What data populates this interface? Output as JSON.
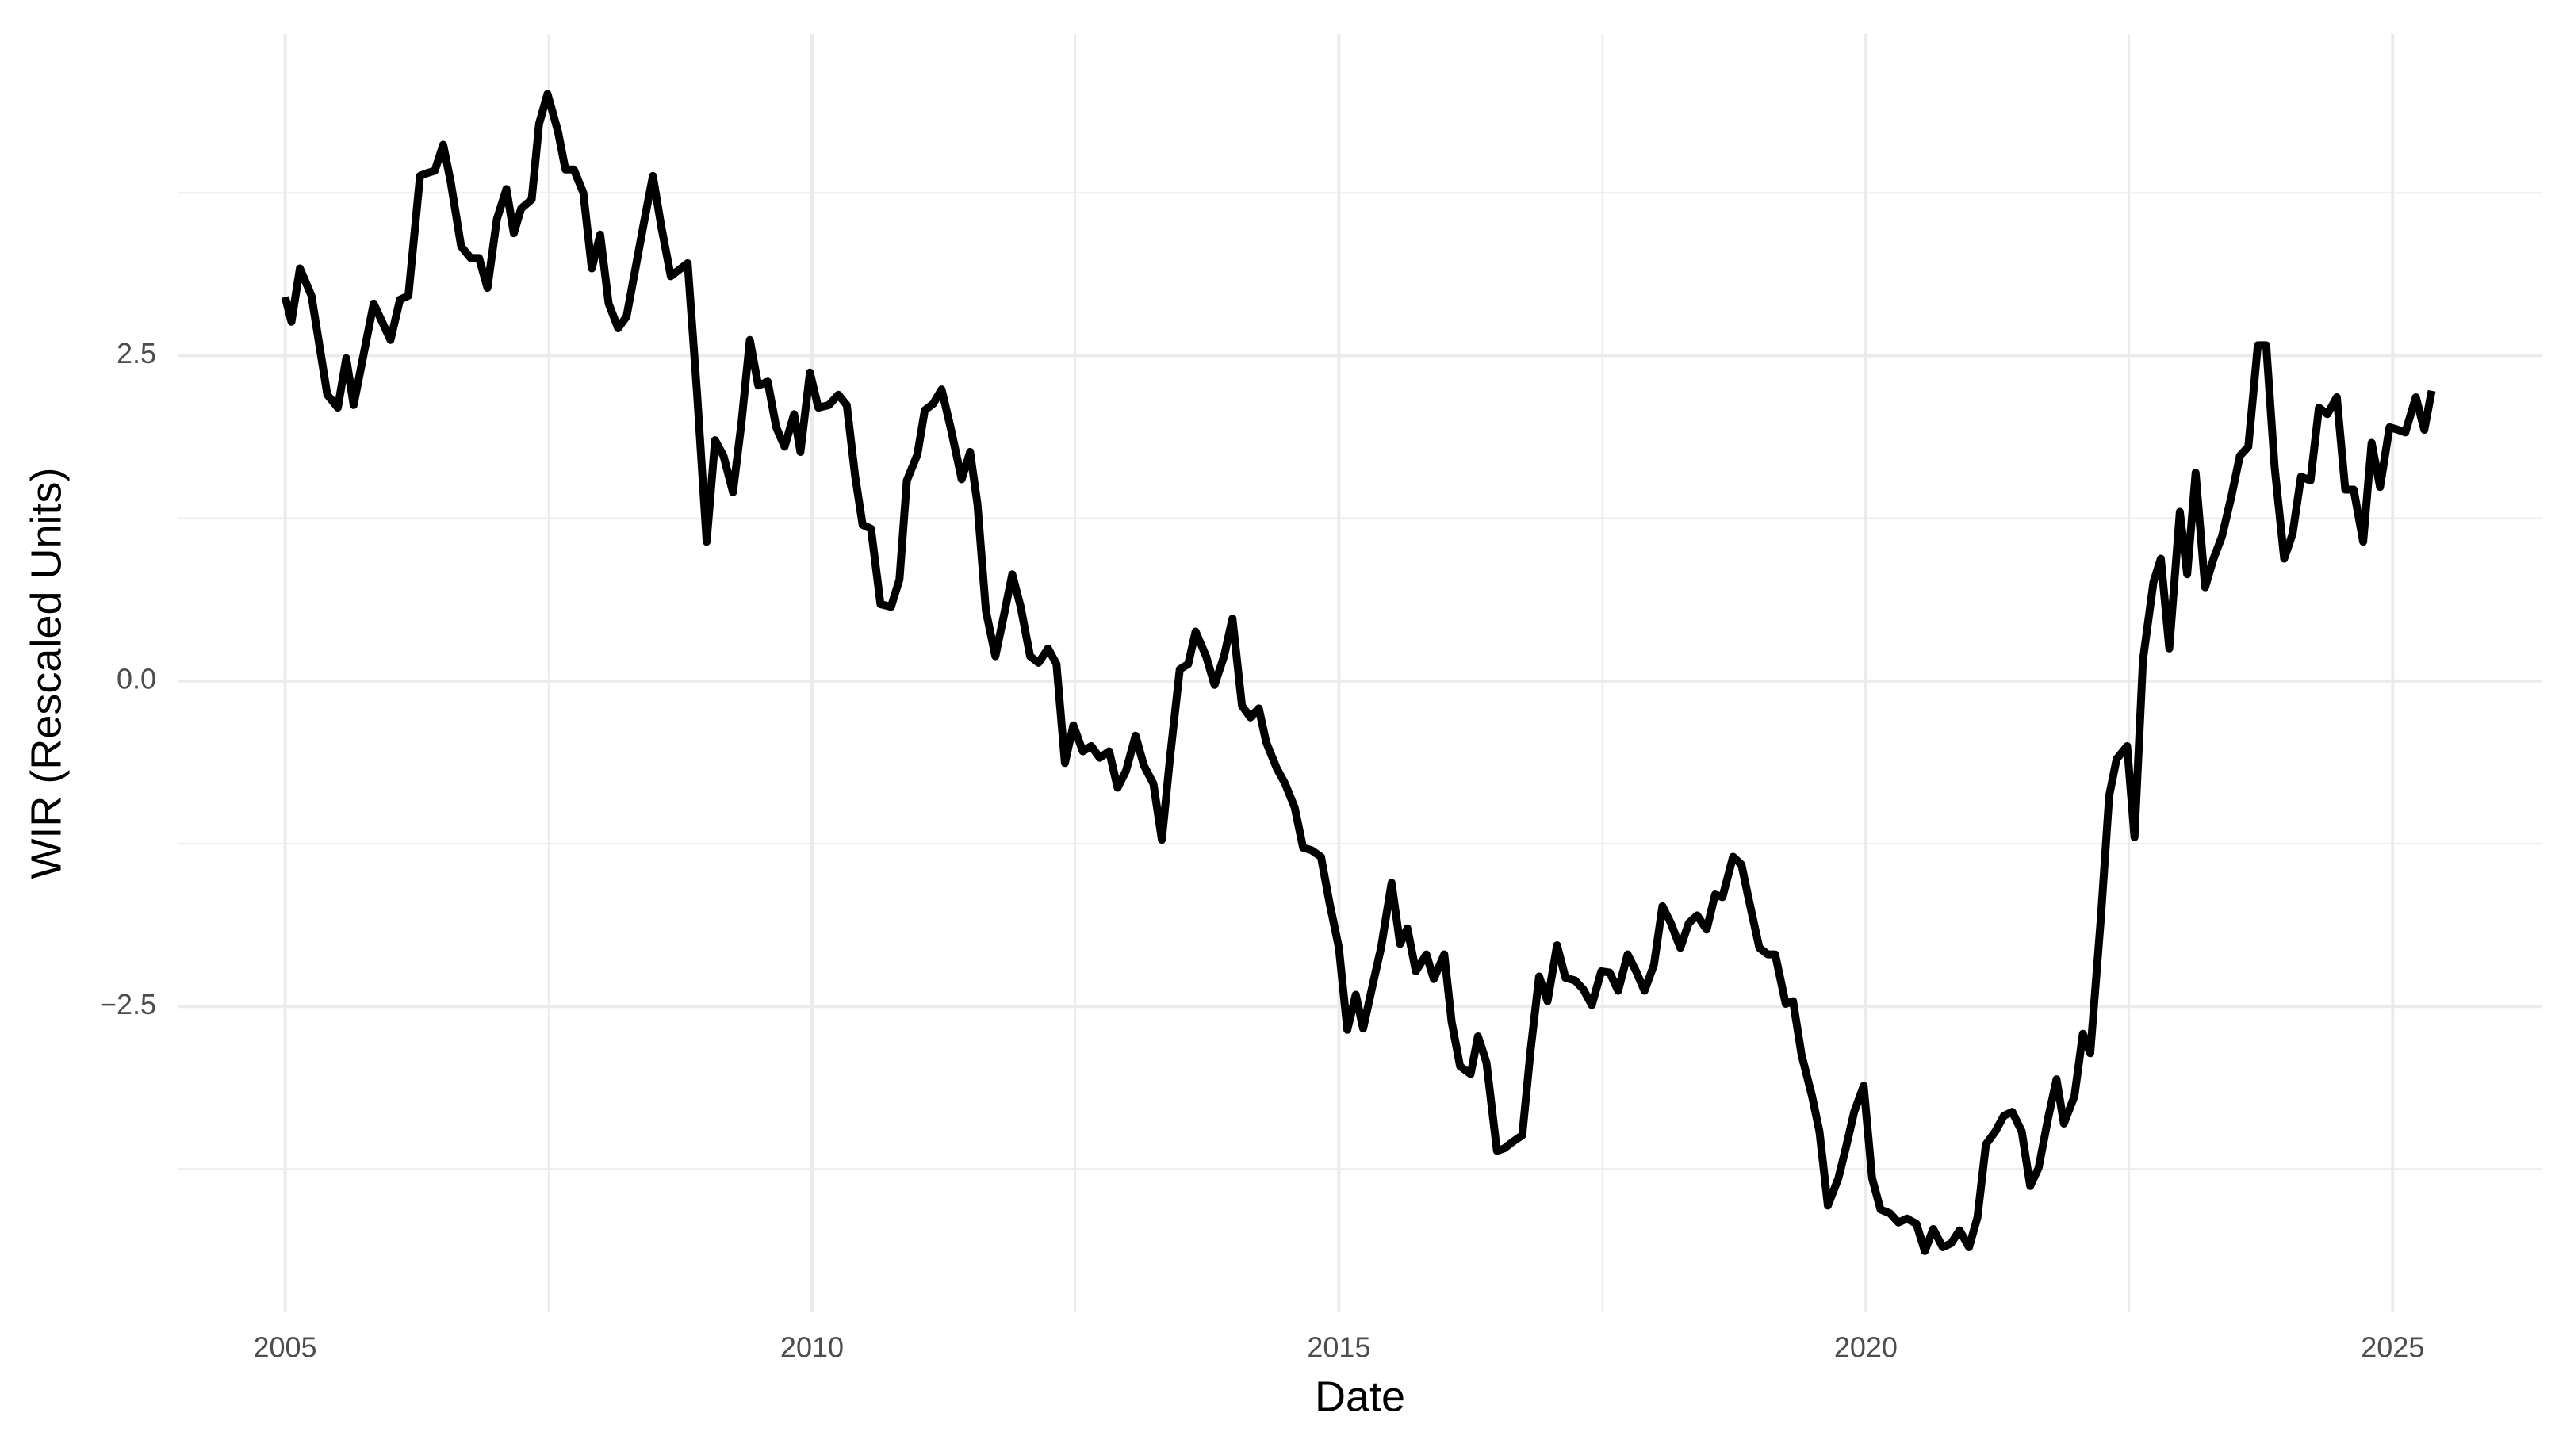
{
  "chart_data": {
    "type": "line",
    "x_label": "Date",
    "y_label": "WIR (Rescaled Units)",
    "color": "#000000",
    "grid": true,
    "xlim": [
      2003.98,
      2026.42
    ],
    "xticks": [
      2005,
      2010,
      2015,
      2020,
      2025
    ],
    "x_minor_grid": [
      2007.5,
      2012.5,
      2017.5,
      2022.5
    ],
    "ylim": [
      -4.85,
      4.97
    ],
    "yticks": [
      {
        "value": -2.5,
        "label": "−2.5"
      },
      {
        "value": 0,
        "label": "0.0"
      },
      2.5
    ],
    "y_minor_grid": [
      -3.75,
      -1.25,
      1.25,
      3.75
    ],
    "x": [
      2005.0,
      2005.06,
      2005.14,
      2005.25,
      2005.4,
      2005.5,
      2005.58,
      2005.65,
      2005.84,
      2006.0,
      2006.09,
      2006.17,
      2006.28,
      2006.34,
      2006.42,
      2006.5,
      2006.57,
      2006.67,
      2006.76,
      2006.84,
      2006.92,
      2007.01,
      2007.1,
      2007.17,
      2007.24,
      2007.34,
      2007.41,
      2007.49,
      2007.59,
      2007.66,
      2007.74,
      2007.83,
      2007.91,
      2007.99,
      2008.07,
      2008.16,
      2008.24,
      2008.4,
      2008.49,
      2008.57,
      2008.66,
      2008.82,
      2008.91,
      2009.0,
      2009.08,
      2009.16,
      2009.25,
      2009.33,
      2009.41,
      2009.49,
      2009.58,
      2009.66,
      2009.74,
      2009.83,
      2009.89,
      2009.98,
      2010.06,
      2010.16,
      2010.25,
      2010.33,
      2010.41,
      2010.48,
      2010.56,
      2010.65,
      2010.75,
      2010.83,
      2010.9,
      2011.0,
      2011.07,
      2011.15,
      2011.23,
      2011.32,
      2011.42,
      2011.5,
      2011.57,
      2011.65,
      2011.74,
      2011.82,
      2011.9,
      2011.98,
      2012.07,
      2012.15,
      2012.24,
      2012.32,
      2012.4,
      2012.48,
      2012.57,
      2012.65,
      2012.73,
      2012.82,
      2012.9,
      2012.98,
      2013.07,
      2013.15,
      2013.24,
      2013.32,
      2013.4,
      2013.49,
      2013.57,
      2013.64,
      2013.74,
      2013.82,
      2013.91,
      2013.99,
      2014.08,
      2014.16,
      2014.24,
      2014.31,
      2014.41,
      2014.49,
      2014.58,
      2014.66,
      2014.74,
      2014.83,
      2014.91,
      2015.0,
      2015.08,
      2015.16,
      2015.23,
      2015.33,
      2015.4,
      2015.5,
      2015.58,
      2015.65,
      2015.73,
      2015.83,
      2015.9,
      2016.0,
      2016.07,
      2016.15,
      2016.25,
      2016.32,
      2016.4,
      2016.5,
      2016.57,
      2016.65,
      2016.74,
      2016.82,
      2016.9,
      2016.98,
      2017.07,
      2017.15,
      2017.24,
      2017.32,
      2017.4,
      2017.49,
      2017.57,
      2017.65,
      2017.74,
      2017.82,
      2017.9,
      2017.99,
      2018.07,
      2018.15,
      2018.24,
      2018.32,
      2018.4,
      2018.49,
      2018.57,
      2018.64,
      2018.74,
      2018.82,
      2018.89,
      2018.99,
      2019.07,
      2019.14,
      2019.24,
      2019.31,
      2019.39,
      2019.49,
      2019.56,
      2019.64,
      2019.74,
      2019.81,
      2019.89,
      2019.98,
      2020.06,
      2020.14,
      2020.23,
      2020.31,
      2020.39,
      2020.48,
      2020.56,
      2020.64,
      2020.73,
      2020.81,
      2020.89,
      2020.98,
      2021.06,
      2021.14,
      2021.23,
      2021.31,
      2021.39,
      2021.48,
      2021.56,
      2021.64,
      2021.73,
      2021.81,
      2021.88,
      2021.98,
      2022.06,
      2022.13,
      2022.23,
      2022.31,
      2022.38,
      2022.48,
      2022.55,
      2022.63,
      2022.73,
      2022.8,
      2022.88,
      2022.98,
      2023.05,
      2023.13,
      2023.22,
      2023.3,
      2023.38,
      2023.47,
      2023.55,
      2023.63,
      2023.72,
      2023.8,
      2023.88,
      2023.97,
      2024.05,
      2024.13,
      2024.22,
      2024.3,
      2024.38,
      2024.47,
      2024.55,
      2024.63,
      2024.72,
      2024.8,
      2024.88,
      2024.97,
      2025.05,
      2025.12,
      2025.22,
      2025.3,
      2025.37
    ],
    "values": [
      2.95,
      2.76,
      3.17,
      2.96,
      2.2,
      2.1,
      2.48,
      2.12,
      2.9,
      2.62,
      2.93,
      2.96,
      3.88,
      3.9,
      3.92,
      4.12,
      3.84,
      3.34,
      3.25,
      3.25,
      3.02,
      3.55,
      3.78,
      3.44,
      3.63,
      3.7,
      4.28,
      4.51,
      4.22,
      3.93,
      3.93,
      3.75,
      3.17,
      3.43,
      2.9,
      2.71,
      2.8,
      3.5,
      3.88,
      3.49,
      3.11,
      3.21,
      2.2,
      1.07,
      1.85,
      1.73,
      1.45,
      1.98,
      2.62,
      2.27,
      2.3,
      1.95,
      1.8,
      2.05,
      1.76,
      2.37,
      2.1,
      2.12,
      2.2,
      2.12,
      1.57,
      1.2,
      1.17,
      0.59,
      0.57,
      0.78,
      1.54,
      1.74,
      2.08,
      2.13,
      2.24,
      1.93,
      1.55,
      1.76,
      1.36,
      0.54,
      0.19,
      0.5,
      0.82,
      0.57,
      0.19,
      0.14,
      0.25,
      0.13,
      -0.63,
      -0.34,
      -0.54,
      -0.5,
      -0.59,
      -0.54,
      -0.82,
      -0.69,
      -0.42,
      -0.65,
      -0.79,
      -1.22,
      -0.57,
      0.09,
      0.13,
      0.38,
      0.19,
      -0.03,
      0.19,
      0.48,
      -0.19,
      -0.28,
      -0.21,
      -0.47,
      -0.67,
      -0.79,
      -0.97,
      -1.28,
      -1.3,
      -1.35,
      -1.7,
      -2.05,
      -2.68,
      -2.41,
      -2.67,
      -2.3,
      -2.05,
      -1.55,
      -2.02,
      -1.9,
      -2.23,
      -2.1,
      -2.29,
      -2.1,
      -2.62,
      -2.96,
      -3.02,
      -2.73,
      -2.93,
      -3.61,
      -3.59,
      -3.54,
      -3.49,
      -2.83,
      -2.27,
      -2.46,
      -2.03,
      -2.28,
      -2.3,
      -2.37,
      -2.49,
      -2.23,
      -2.24,
      -2.38,
      -2.1,
      -2.23,
      -2.38,
      -2.18,
      -1.73,
      -1.86,
      -2.05,
      -1.86,
      -1.8,
      -1.91,
      -1.64,
      -1.66,
      -1.35,
      -1.41,
      -1.68,
      -2.05,
      -2.1,
      -2.1,
      -2.48,
      -2.46,
      -2.87,
      -3.19,
      -3.46,
      -4.03,
      -3.82,
      -3.59,
      -3.31,
      -3.11,
      -3.82,
      -4.06,
      -4.09,
      -4.16,
      -4.13,
      -4.17,
      -4.38,
      -4.21,
      -4.35,
      -4.32,
      -4.22,
      -4.35,
      -4.12,
      -3.56,
      -3.46,
      -3.34,
      -3.31,
      -3.46,
      -3.88,
      -3.74,
      -3.36,
      -3.06,
      -3.4,
      -3.19,
      -2.71,
      -2.86,
      -1.83,
      -0.88,
      -0.6,
      -0.5,
      -1.2,
      0.16,
      0.76,
      0.94,
      0.25,
      1.3,
      0.82,
      1.6,
      0.72,
      0.94,
      1.11,
      1.42,
      1.73,
      1.8,
      2.58,
      2.58,
      1.64,
      0.94,
      1.13,
      1.57,
      1.54,
      2.1,
      2.05,
      2.18,
      1.47,
      1.47,
      1.07,
      1.83,
      1.49,
      1.95,
      1.93,
      1.91,
      2.18,
      1.93,
      2.23
    ]
  }
}
